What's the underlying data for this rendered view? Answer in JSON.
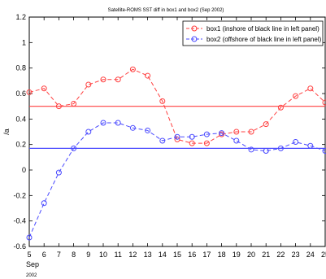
{
  "chart_data": {
    "type": "line",
    "title": "Satellite-ROMS SST diff in box1 and box2 (Sep 2002)",
    "ylabel": "/a",
    "xlabel": "Sep",
    "xlabel_extra": "2002",
    "xlim": [
      5,
      25
    ],
    "ylim": [
      -0.6,
      1.2
    ],
    "xticks": [
      5,
      6,
      7,
      8,
      9,
      10,
      11,
      12,
      13,
      14,
      15,
      16,
      17,
      18,
      19,
      20,
      21,
      22,
      23,
      24,
      25
    ],
    "yticks": [
      -0.6,
      -0.4,
      -0.2,
      0,
      0.2,
      0.4,
      0.6,
      0.8,
      1,
      1.2
    ],
    "ytick_labels": [
      "-0.6",
      "-0.4",
      "-0.2",
      "0",
      "0.2",
      "0.4",
      "0.6",
      "0.8",
      "1",
      "1.2"
    ],
    "legend_position": "top-right",
    "series": [
      {
        "name": "box1 (inshore of black line in left panel)",
        "color": "#ff4040",
        "x": [
          5,
          6,
          7,
          8,
          9,
          10,
          11,
          12,
          13,
          14,
          15,
          16,
          17,
          18,
          19,
          20,
          21,
          22,
          23,
          24,
          25
        ],
        "values": [
          0.61,
          0.64,
          0.5,
          0.52,
          0.67,
          0.71,
          0.71,
          0.79,
          0.74,
          0.54,
          0.24,
          0.21,
          0.21,
          0.28,
          0.3,
          0.3,
          0.36,
          0.49,
          0.58,
          0.64,
          0.53
        ],
        "mean": 0.5
      },
      {
        "name": "box2 (offshore of black line in left panel)",
        "color": "#4a4aff",
        "x": [
          5,
          6,
          7,
          8,
          9,
          10,
          11,
          12,
          13,
          14,
          15,
          16,
          17,
          18,
          19,
          20,
          21,
          22,
          23,
          24,
          25
        ],
        "values": [
          -0.53,
          -0.26,
          -0.02,
          0.17,
          0.3,
          0.37,
          0.37,
          0.33,
          0.31,
          0.23,
          0.26,
          0.26,
          0.28,
          0.29,
          0.23,
          0.16,
          0.15,
          0.17,
          0.22,
          0.19,
          0.15
        ],
        "mean": 0.17
      }
    ],
    "grid": false
  }
}
